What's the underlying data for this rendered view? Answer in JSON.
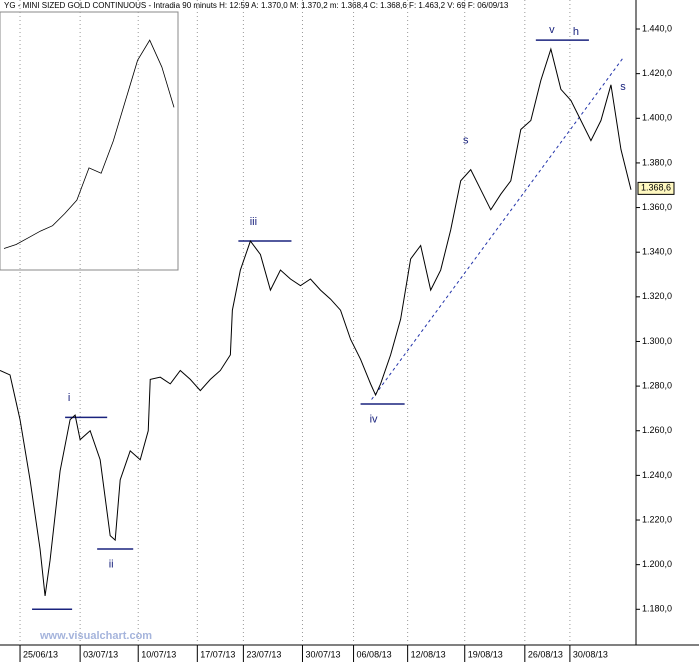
{
  "chart_data": [
    {
      "type": "line",
      "title": "YG - MINI SIZED GOLD CONTINUOUS - Intradia 90 minuts  H: 12:59  A: 1.370,0  M: 1.370,2  m: 1.368,4  C: 1.368,6  F: 1.463,2  V: 69  F: 06/09/13",
      "watermark": "www.visualchart.com",
      "x": [
        0,
        2,
        4,
        6,
        8,
        9,
        10,
        12,
        14,
        15,
        16,
        18,
        20,
        22,
        23,
        24,
        26,
        28,
        29.6,
        30,
        32,
        34,
        36,
        38,
        40,
        42,
        44,
        46,
        46.4,
        48,
        50,
        52,
        54,
        56,
        58,
        60,
        62,
        64,
        66,
        68,
        70,
        72,
        74,
        75,
        76,
        78,
        80,
        82,
        84,
        86,
        88,
        90,
        92,
        94,
        96,
        98,
        100,
        102,
        104,
        106,
        108,
        110,
        112,
        114,
        116,
        118,
        120,
        122,
        124,
        126
      ],
      "series": [
        {
          "name": "YG",
          "color": "#000000",
          "values": [
            1.287,
            1.285,
            1.265,
            1.238,
            1.207,
            1.186,
            1.202,
            1.242,
            1.265,
            1.267,
            1.256,
            1.26,
            1.247,
            1.213,
            1.211,
            1.238,
            1.251,
            1.247,
            1.26,
            1.283,
            1.284,
            1.281,
            1.287,
            1.283,
            1.278,
            1.283,
            1.287,
            1.294,
            1.314,
            1.332,
            1.345,
            1.339,
            1.323,
            1.332,
            1.328,
            1.325,
            1.328,
            1.323,
            1.319,
            1.314,
            1.301,
            1.292,
            1.281,
            1.276,
            1.281,
            1.294,
            1.31,
            1.337,
            1.343,
            1.323,
            1.332,
            1.35,
            1.372,
            1.377,
            1.368,
            1.359,
            1.366,
            1.372,
            1.395,
            1.399,
            1.417,
            1.431,
            1.413,
            1.408,
            1.399,
            1.39,
            1.399,
            1.415,
            1.386,
            1.368
          ]
        }
      ],
      "xlim": [
        0,
        127
      ],
      "xticks": [
        {
          "value": 4,
          "label": "25/06/13"
        },
        {
          "value": 16,
          "label": "03/07/13"
        },
        {
          "value": 27.6,
          "label": "10/07/13"
        },
        {
          "value": 39.4,
          "label": "17/07/13"
        },
        {
          "value": 48.6,
          "label": "23/07/13"
        },
        {
          "value": 60.4,
          "label": "30/07/13"
        },
        {
          "value": 70.6,
          "label": "06/08/13"
        },
        {
          "value": 81.4,
          "label": "12/08/13"
        },
        {
          "value": 92.8,
          "label": "19/08/13"
        },
        {
          "value": 104.8,
          "label": "26/08/13"
        },
        {
          "value": 113.8,
          "label": "30/08/13"
        }
      ],
      "ylim": [
        1.164,
        1.453
      ],
      "yticks": [
        {
          "value": 1.18,
          "label": "1.180,0"
        },
        {
          "value": 1.2,
          "label": "1.200,0"
        },
        {
          "value": 1.22,
          "label": "1.220,0"
        },
        {
          "value": 1.24,
          "label": "1.240,0"
        },
        {
          "value": 1.26,
          "label": "1.260,0"
        },
        {
          "value": 1.28,
          "label": "1.280,0"
        },
        {
          "value": 1.3,
          "label": "1.300,0"
        },
        {
          "value": 1.32,
          "label": "1.320,0"
        },
        {
          "value": 1.34,
          "label": "1.340,0"
        },
        {
          "value": 1.36,
          "label": "1.360,0"
        },
        {
          "value": 1.38,
          "label": "1.380,0"
        },
        {
          "value": 1.4,
          "label": "1.400,0"
        },
        {
          "value": 1.42,
          "label": "1.420,0"
        },
        {
          "value": 1.44,
          "label": "1.440,0"
        }
      ],
      "grid": "x",
      "last": {
        "value": 1.3686,
        "label": "1.368,6"
      },
      "level_lines": [
        {
          "y": 1.18,
          "x": [
            6.4,
            14.4
          ]
        },
        {
          "y": 1.266,
          "x": [
            13,
            21.4
          ]
        },
        {
          "y": 1.207,
          "x": [
            19.4,
            26.6
          ]
        },
        {
          "y": 1.345,
          "x": [
            47.6,
            58.2
          ]
        },
        {
          "y": 1.272,
          "x": [
            72,
            80.8
          ]
        },
        {
          "y": 1.435,
          "x": [
            107,
            117.6
          ]
        }
      ],
      "trend_line": {
        "x": [
          74.2,
          124.4
        ],
        "y": [
          1.274,
          1.427
        ]
      },
      "annotations": [
        {
          "text": "i",
          "x": 13.8,
          "y": 1.2747
        },
        {
          "text": "ii",
          "x": 22.2,
          "y": 1.2
        },
        {
          "text": "iii",
          "x": 50.6,
          "y": 1.3535
        },
        {
          "text": "iv",
          "x": 74.6,
          "y": 1.265
        },
        {
          "text": "v",
          "x": 110.2,
          "y": 1.4396
        },
        {
          "text": "h",
          "x": 115,
          "y": 1.4387
        },
        {
          "text": "s",
          "x": 93,
          "y": 1.39
        },
        {
          "text": "s",
          "x": 124.4,
          "y": 1.414
        }
      ]
    },
    {
      "type": "line",
      "series": [
        {
          "name": "YG",
          "color": "#000000",
          "values": [
            300,
            330,
            380,
            430,
            470,
            560,
            660,
            900,
            860,
            1100,
            1400,
            1700,
            1850,
            1650,
            1350
          ]
        }
      ],
      "ylim": [
        200,
        2000
      ]
    }
  ]
}
